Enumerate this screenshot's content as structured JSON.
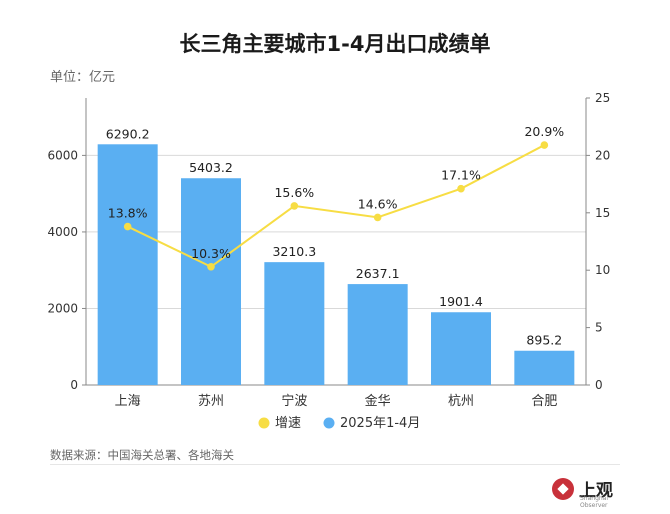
{
  "header": {
    "title": "长三角主要城市1-4月出口成绩单",
    "unit_label": "单位：亿元"
  },
  "footer": {
    "source": "数据来源：中国海关总署、各地海关",
    "logo_text": "上观",
    "logo_sub": "Shanghai Observer",
    "logo_icon": "shangguan-logo-icon"
  },
  "colors": {
    "bar": "#5aaff2",
    "line": "#f7dd44",
    "grid": "#d9d9d9",
    "text": "#333333",
    "logo": "#c8313a"
  },
  "chart_data": {
    "type": "bar+line",
    "title": "长三角主要城市1-4月出口成绩单",
    "categories": [
      "上海",
      "苏州",
      "宁波",
      "金华",
      "杭州",
      "合肥"
    ],
    "series": [
      {
        "name": "2025年1-4月",
        "type": "bar",
        "axis": "left",
        "values": [
          6290.2,
          5403.2,
          3210.3,
          2637.1,
          1901.4,
          895.2
        ],
        "labels": [
          "6290.2",
          "5403.2",
          "3210.3",
          "2637.1",
          "1901.4",
          "895.2"
        ]
      },
      {
        "name": "增速",
        "type": "line",
        "axis": "right",
        "values": [
          13.8,
          10.3,
          15.6,
          14.6,
          17.1,
          20.9
        ],
        "labels": [
          "13.8%",
          "10.3%",
          "15.6%",
          "14.6%",
          "17.1%",
          "20.9%"
        ]
      }
    ],
    "y_left": {
      "ylim": [
        0,
        7500
      ],
      "ticks": [
        0,
        2000,
        4000,
        6000
      ],
      "tick_labels": [
        "0",
        "2000",
        "4000",
        "6000"
      ]
    },
    "y_right": {
      "ylim": [
        0,
        25
      ],
      "ticks": [
        0,
        5,
        10,
        15,
        20,
        25
      ],
      "tick_labels": [
        "0",
        "5",
        "10",
        "15",
        "20",
        "25"
      ]
    },
    "legend": {
      "position": "bottom",
      "items": [
        "增速",
        "2025年1-4月"
      ]
    },
    "grid": true
  }
}
